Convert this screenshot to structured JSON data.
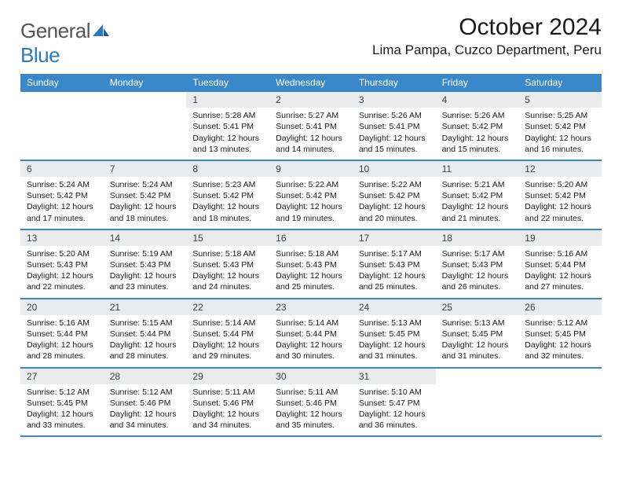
{
  "logo": {
    "word1": "General",
    "word2": "Blue"
  },
  "title": "October 2024",
  "location": "Lima Pampa, Cuzco Department, Peru",
  "colors": {
    "header_bg": "#3b88c8",
    "daynum_bg": "#e9ebed",
    "text": "#1a1a1a",
    "logo_gray": "#555555",
    "logo_blue": "#2a7ac0"
  },
  "dayNames": [
    "Sunday",
    "Monday",
    "Tuesday",
    "Wednesday",
    "Thursday",
    "Friday",
    "Saturday"
  ],
  "weeks": [
    [
      {
        "empty": true
      },
      {
        "empty": true
      },
      {
        "day": "1",
        "sunrise": "Sunrise: 5:28 AM",
        "sunset": "Sunset: 5:41 PM",
        "daylight": "Daylight: 12 hours and 13 minutes."
      },
      {
        "day": "2",
        "sunrise": "Sunrise: 5:27 AM",
        "sunset": "Sunset: 5:41 PM",
        "daylight": "Daylight: 12 hours and 14 minutes."
      },
      {
        "day": "3",
        "sunrise": "Sunrise: 5:26 AM",
        "sunset": "Sunset: 5:41 PM",
        "daylight": "Daylight: 12 hours and 15 minutes."
      },
      {
        "day": "4",
        "sunrise": "Sunrise: 5:26 AM",
        "sunset": "Sunset: 5:42 PM",
        "daylight": "Daylight: 12 hours and 15 minutes."
      },
      {
        "day": "5",
        "sunrise": "Sunrise: 5:25 AM",
        "sunset": "Sunset: 5:42 PM",
        "daylight": "Daylight: 12 hours and 16 minutes."
      }
    ],
    [
      {
        "day": "6",
        "sunrise": "Sunrise: 5:24 AM",
        "sunset": "Sunset: 5:42 PM",
        "daylight": "Daylight: 12 hours and 17 minutes."
      },
      {
        "day": "7",
        "sunrise": "Sunrise: 5:24 AM",
        "sunset": "Sunset: 5:42 PM",
        "daylight": "Daylight: 12 hours and 18 minutes."
      },
      {
        "day": "8",
        "sunrise": "Sunrise: 5:23 AM",
        "sunset": "Sunset: 5:42 PM",
        "daylight": "Daylight: 12 hours and 18 minutes."
      },
      {
        "day": "9",
        "sunrise": "Sunrise: 5:22 AM",
        "sunset": "Sunset: 5:42 PM",
        "daylight": "Daylight: 12 hours and 19 minutes."
      },
      {
        "day": "10",
        "sunrise": "Sunrise: 5:22 AM",
        "sunset": "Sunset: 5:42 PM",
        "daylight": "Daylight: 12 hours and 20 minutes."
      },
      {
        "day": "11",
        "sunrise": "Sunrise: 5:21 AM",
        "sunset": "Sunset: 5:42 PM",
        "daylight": "Daylight: 12 hours and 21 minutes."
      },
      {
        "day": "12",
        "sunrise": "Sunrise: 5:20 AM",
        "sunset": "Sunset: 5:42 PM",
        "daylight": "Daylight: 12 hours and 22 minutes."
      }
    ],
    [
      {
        "day": "13",
        "sunrise": "Sunrise: 5:20 AM",
        "sunset": "Sunset: 5:43 PM",
        "daylight": "Daylight: 12 hours and 22 minutes."
      },
      {
        "day": "14",
        "sunrise": "Sunrise: 5:19 AM",
        "sunset": "Sunset: 5:43 PM",
        "daylight": "Daylight: 12 hours and 23 minutes."
      },
      {
        "day": "15",
        "sunrise": "Sunrise: 5:18 AM",
        "sunset": "Sunset: 5:43 PM",
        "daylight": "Daylight: 12 hours and 24 minutes."
      },
      {
        "day": "16",
        "sunrise": "Sunrise: 5:18 AM",
        "sunset": "Sunset: 5:43 PM",
        "daylight": "Daylight: 12 hours and 25 minutes."
      },
      {
        "day": "17",
        "sunrise": "Sunrise: 5:17 AM",
        "sunset": "Sunset: 5:43 PM",
        "daylight": "Daylight: 12 hours and 25 minutes."
      },
      {
        "day": "18",
        "sunrise": "Sunrise: 5:17 AM",
        "sunset": "Sunset: 5:43 PM",
        "daylight": "Daylight: 12 hours and 26 minutes."
      },
      {
        "day": "19",
        "sunrise": "Sunrise: 5:16 AM",
        "sunset": "Sunset: 5:44 PM",
        "daylight": "Daylight: 12 hours and 27 minutes."
      }
    ],
    [
      {
        "day": "20",
        "sunrise": "Sunrise: 5:16 AM",
        "sunset": "Sunset: 5:44 PM",
        "daylight": "Daylight: 12 hours and 28 minutes."
      },
      {
        "day": "21",
        "sunrise": "Sunrise: 5:15 AM",
        "sunset": "Sunset: 5:44 PM",
        "daylight": "Daylight: 12 hours and 28 minutes."
      },
      {
        "day": "22",
        "sunrise": "Sunrise: 5:14 AM",
        "sunset": "Sunset: 5:44 PM",
        "daylight": "Daylight: 12 hours and 29 minutes."
      },
      {
        "day": "23",
        "sunrise": "Sunrise: 5:14 AM",
        "sunset": "Sunset: 5:44 PM",
        "daylight": "Daylight: 12 hours and 30 minutes."
      },
      {
        "day": "24",
        "sunrise": "Sunrise: 5:13 AM",
        "sunset": "Sunset: 5:45 PM",
        "daylight": "Daylight: 12 hours and 31 minutes."
      },
      {
        "day": "25",
        "sunrise": "Sunrise: 5:13 AM",
        "sunset": "Sunset: 5:45 PM",
        "daylight": "Daylight: 12 hours and 31 minutes."
      },
      {
        "day": "26",
        "sunrise": "Sunrise: 5:12 AM",
        "sunset": "Sunset: 5:45 PM",
        "daylight": "Daylight: 12 hours and 32 minutes."
      }
    ],
    [
      {
        "day": "27",
        "sunrise": "Sunrise: 5:12 AM",
        "sunset": "Sunset: 5:45 PM",
        "daylight": "Daylight: 12 hours and 33 minutes."
      },
      {
        "day": "28",
        "sunrise": "Sunrise: 5:12 AM",
        "sunset": "Sunset: 5:46 PM",
        "daylight": "Daylight: 12 hours and 34 minutes."
      },
      {
        "day": "29",
        "sunrise": "Sunrise: 5:11 AM",
        "sunset": "Sunset: 5:46 PM",
        "daylight": "Daylight: 12 hours and 34 minutes."
      },
      {
        "day": "30",
        "sunrise": "Sunrise: 5:11 AM",
        "sunset": "Sunset: 5:46 PM",
        "daylight": "Daylight: 12 hours and 35 minutes."
      },
      {
        "day": "31",
        "sunrise": "Sunrise: 5:10 AM",
        "sunset": "Sunset: 5:47 PM",
        "daylight": "Daylight: 12 hours and 36 minutes."
      },
      {
        "empty": true
      },
      {
        "empty": true
      }
    ]
  ]
}
